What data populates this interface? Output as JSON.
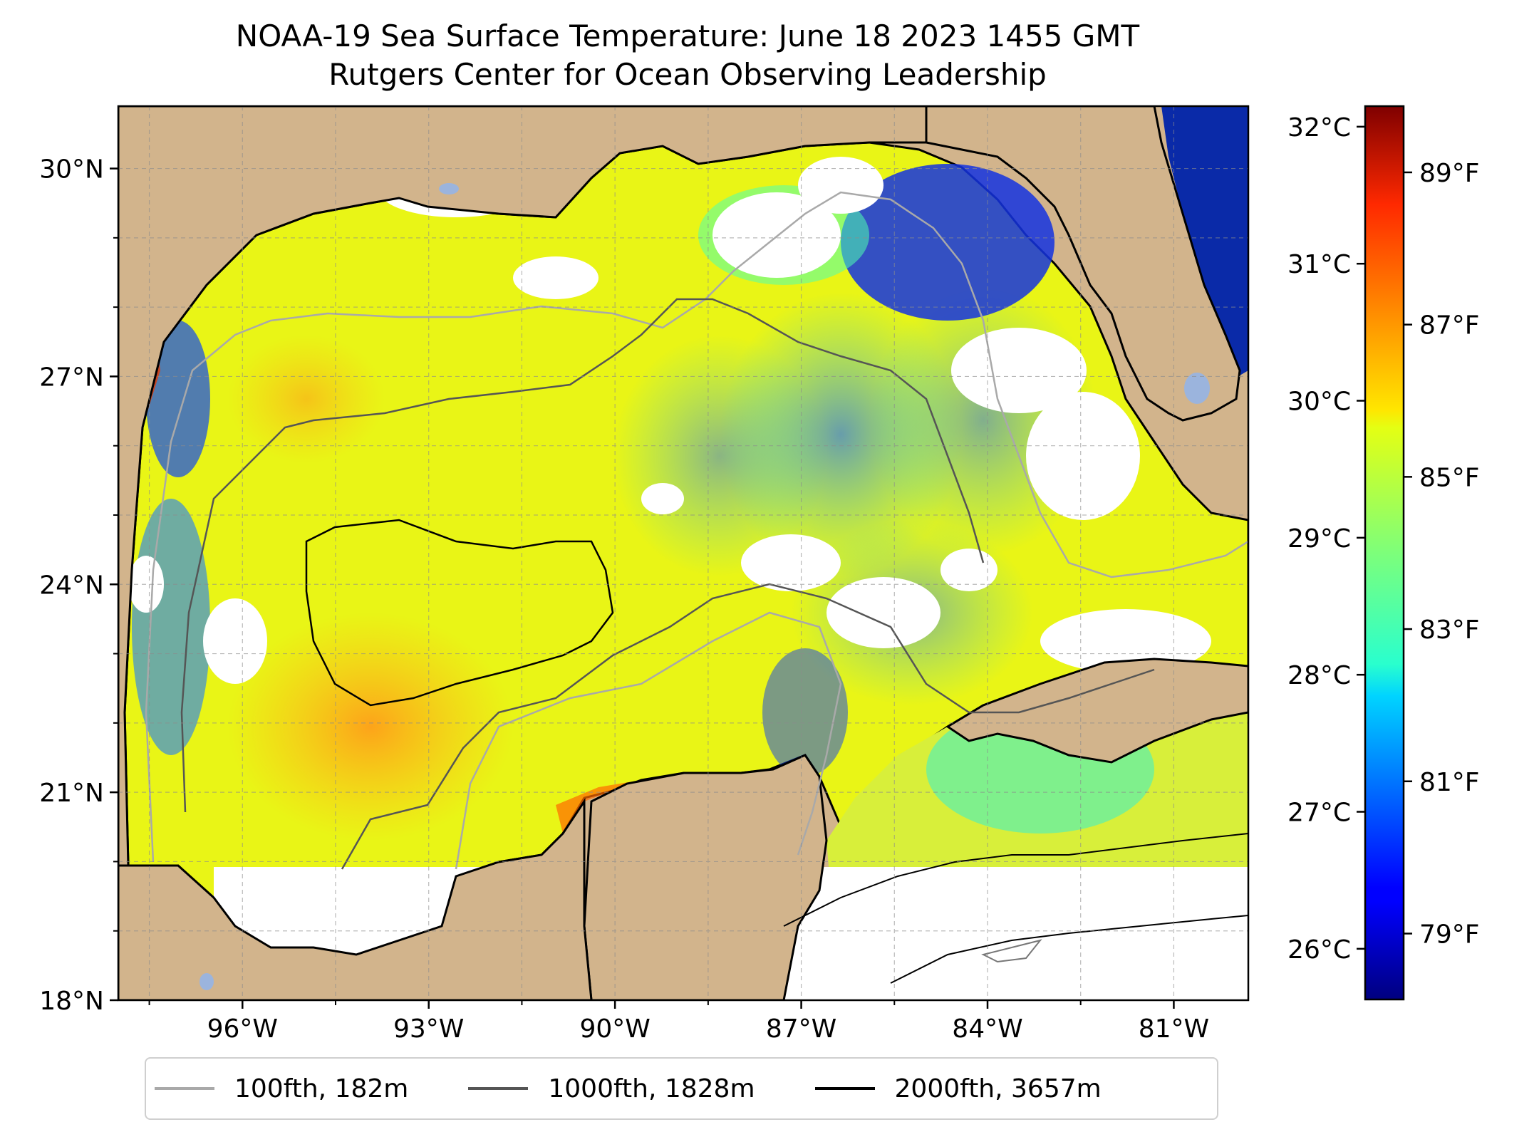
{
  "title": {
    "line1": "NOAA-19 Sea Surface Temperature: June 18 2023 1455 GMT",
    "line2": "Rutgers Center for Ocean Observing Leadership"
  },
  "map": {
    "lon_range": [
      -98.0,
      -79.8
    ],
    "lat_range": [
      18.0,
      30.9
    ],
    "lon_ticks": [
      "96°W",
      "93°W",
      "90°W",
      "87°W",
      "84°W",
      "81°W"
    ],
    "lat_ticks": [
      "18°N",
      "21°N",
      "24°N",
      "27°N",
      "30°N"
    ],
    "grid": true,
    "land_color": "#d2b48c",
    "no_data_color": "#ffffff"
  },
  "colorbar": {
    "colormap": "jet",
    "celsius_ticks": [
      "26°C",
      "27°C",
      "28°C",
      "29°C",
      "30°C",
      "31°C",
      "32°C"
    ],
    "fahrenheit_ticks": [
      "79°F",
      "81°F",
      "83°F",
      "85°F",
      "87°F",
      "89°F"
    ]
  },
  "legend": {
    "placement": "bottom",
    "items": [
      {
        "label": "100fth, 182m",
        "color": "#a9a9a9"
      },
      {
        "label": "1000fth, 1828m",
        "color": "#555555"
      },
      {
        "label": "2000fth, 3657m",
        "color": "#000000"
      }
    ]
  }
}
